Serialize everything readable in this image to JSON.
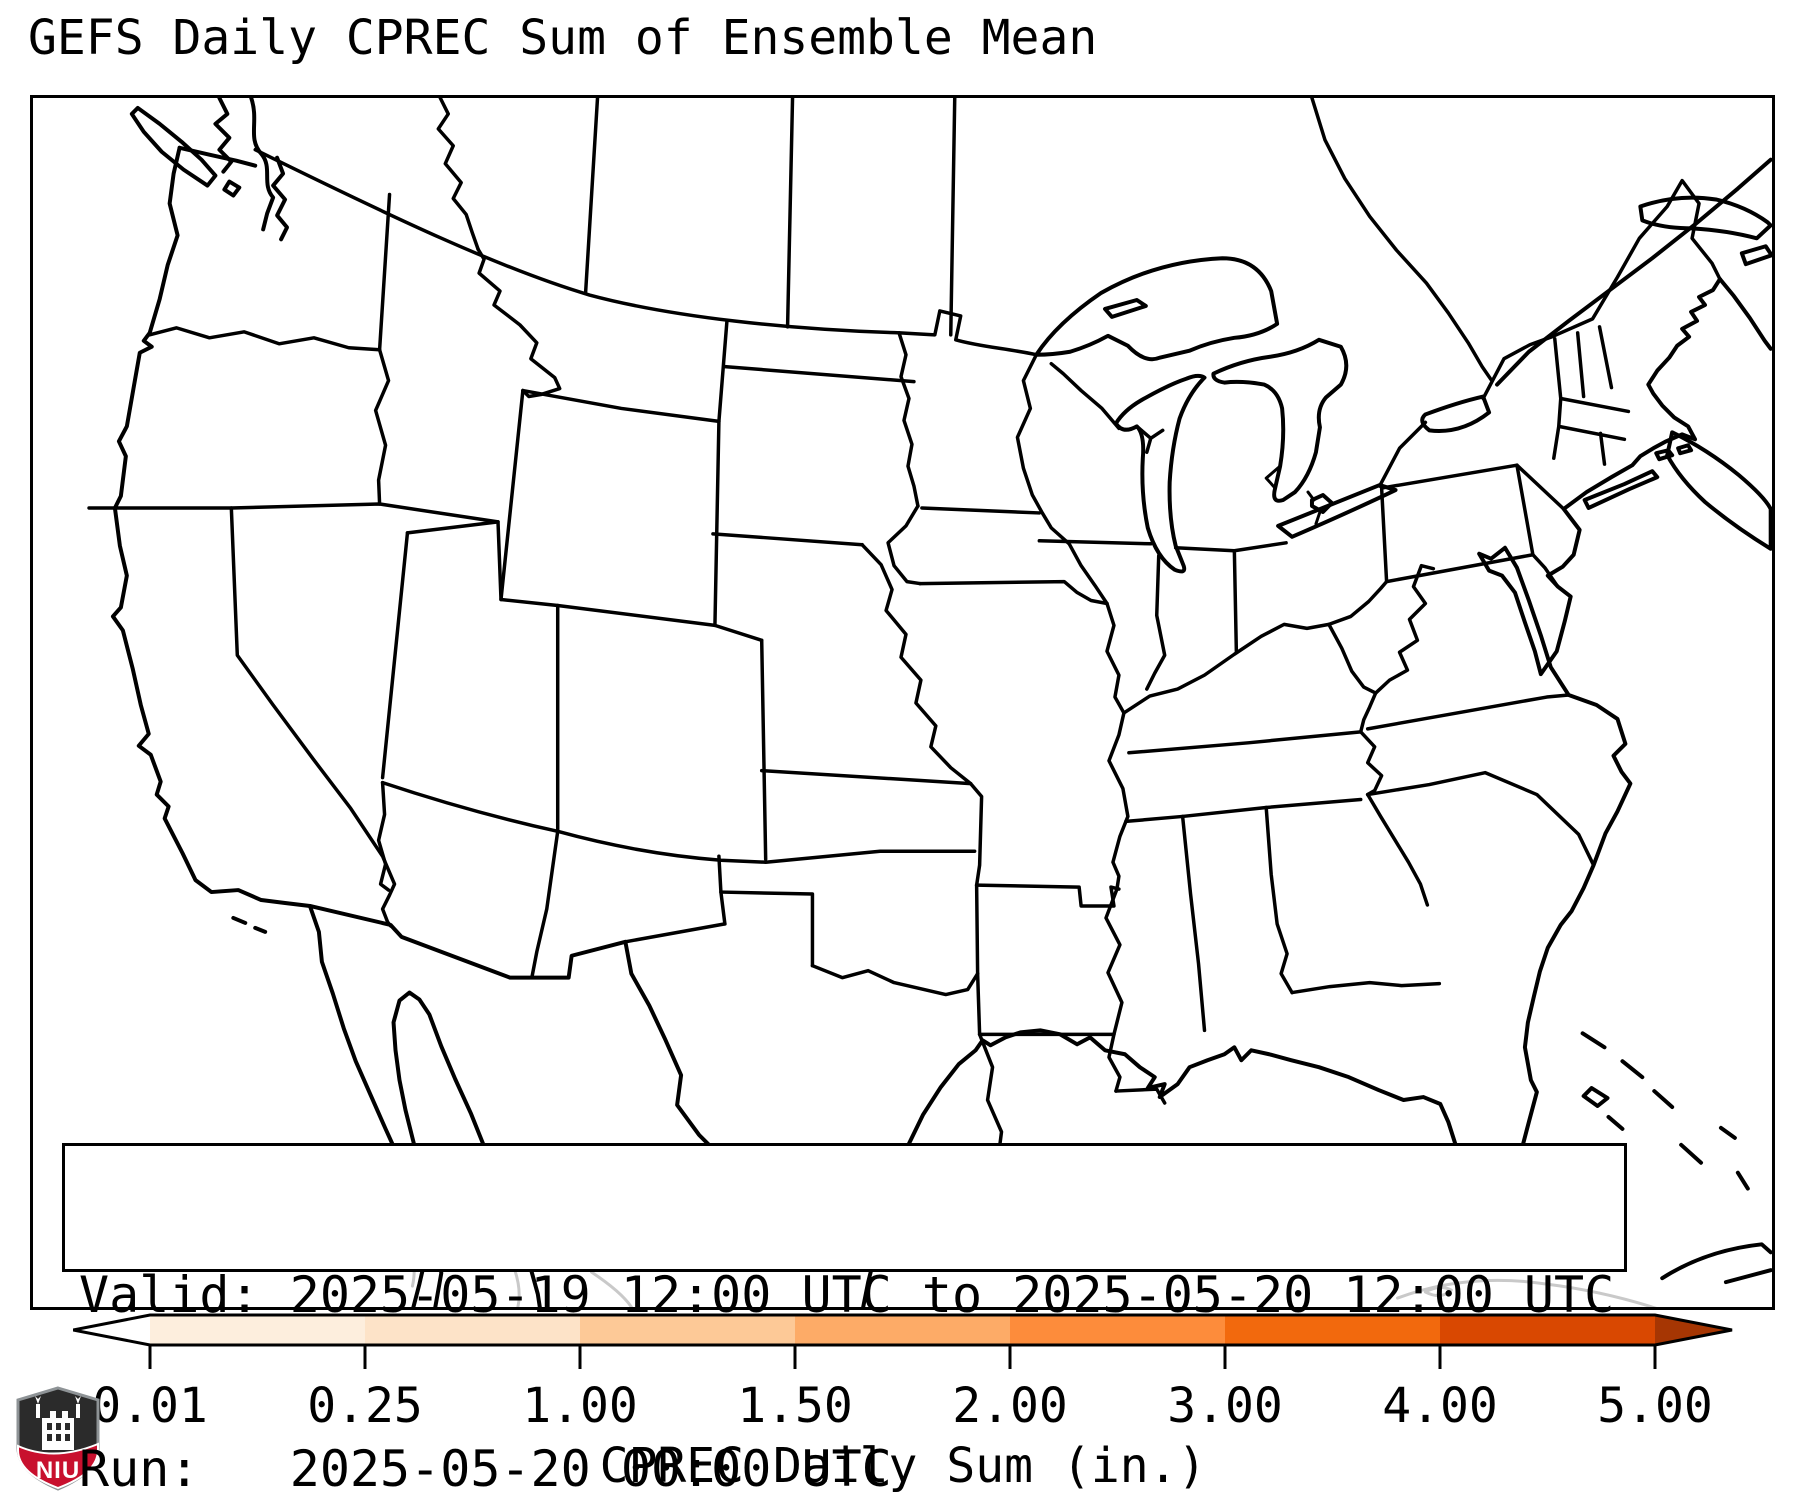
{
  "title": "GEFS Daily CPREC Sum of Ensemble Mean",
  "info_box": {
    "line1": "Valid: 2025-05-19 12:00 UTC to 2025-05-20 12:00 UTC",
    "line2": "Run:   2025-05-20 00:00 UTC"
  },
  "colorbar": {
    "label": "CPREC Daily Sum (in.)",
    "ticks": [
      "0.01",
      "0.25",
      "1.00",
      "1.50",
      "2.00",
      "3.00",
      "4.00",
      "5.00"
    ],
    "boundaries": [
      0.01,
      0.25,
      1.0,
      1.5,
      2.0,
      3.0,
      4.0,
      5.0
    ],
    "segment_colors": [
      "#fdeedd",
      "#fde3c8",
      "#fdc997",
      "#fdab67",
      "#fd8c3b",
      "#f2690d",
      "#d94801"
    ],
    "under_arrow_color": "#ffffff",
    "over_arrow_color": "#a63603",
    "outline_color": "#000000"
  },
  "map": {
    "background": "#ffffff",
    "us_border_color": "#000000",
    "foreign_detail_color": "#c9c9c9"
  },
  "logo": {
    "label": "NIU",
    "dark": "#2b2b2b",
    "red": "#c8102e",
    "border": "#8e9396"
  }
}
